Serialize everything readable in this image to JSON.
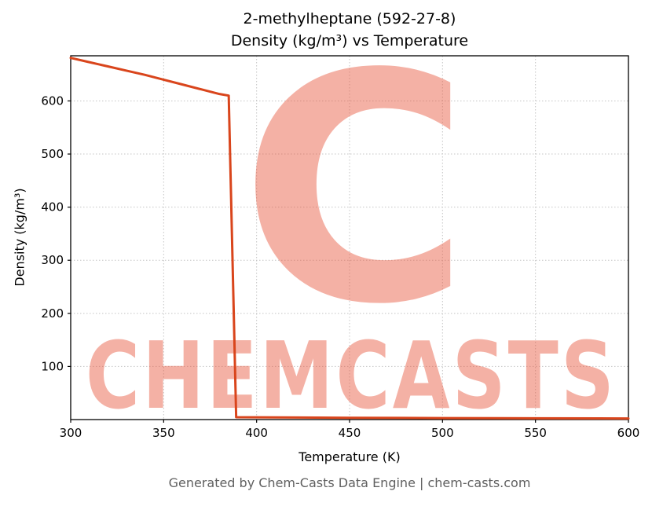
{
  "chart_data": {
    "type": "line",
    "title_line1": "2-methylheptane (592-27-8)",
    "title_line2": "Density (kg/m³) vs Temperature",
    "xlabel": "Temperature (K)",
    "ylabel": "Density (kg/m³)",
    "xlim": [
      300,
      600
    ],
    "ylim": [
      0,
      685
    ],
    "xticks": [
      300,
      350,
      400,
      450,
      500,
      550,
      600
    ],
    "yticks": [
      100,
      200,
      300,
      400,
      500,
      600
    ],
    "grid": true,
    "legend": false,
    "line_color": "#d9451c",
    "series": [
      {
        "name": "Density",
        "x": [
          300,
          310,
          320,
          330,
          340,
          350,
          360,
          370,
          380,
          385,
          389,
          400,
          450,
          500,
          550,
          600
        ],
        "y": [
          681,
          673,
          665,
          657,
          649,
          640,
          631,
          622,
          613,
          610,
          4.5,
          4.2,
          3.4,
          2.8,
          2.4,
          2.1
        ]
      }
    ]
  },
  "watermark": {
    "letter": "C",
    "text": "CHEMCASTS",
    "color": "#e8543a"
  },
  "footer": {
    "text": "Generated by Chem-Casts Data Engine | chem-casts.com"
  }
}
